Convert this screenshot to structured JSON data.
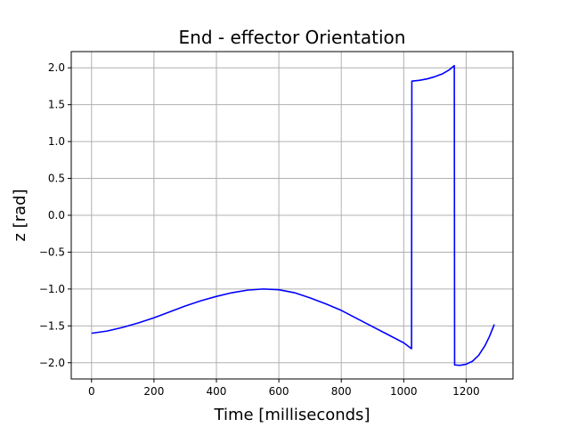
{
  "chart_data": {
    "type": "line",
    "title": "End - effector Orientation",
    "xlabel": "Time [milliseconds]",
    "ylabel": "z [rad]",
    "xlim": [
      -65,
      1350
    ],
    "ylim": [
      -2.22,
      2.22
    ],
    "xticks": [
      0,
      200,
      400,
      600,
      800,
      1000,
      1200
    ],
    "xtick_labels": [
      "0",
      "200",
      "400",
      "600",
      "800",
      "1000",
      "1200"
    ],
    "yticks": [
      2.0,
      1.5,
      1.0,
      0.5,
      0.0,
      -0.5,
      -1.0,
      -1.5,
      -2.0
    ],
    "ytick_labels": [
      "2.0",
      "1.5",
      "1.0",
      "0.5",
      "0.0",
      "−0.5",
      "−1.0",
      "−1.5",
      "−2.0"
    ],
    "grid": true,
    "line_color": "#0000ff",
    "series": [
      {
        "x": [
          0,
          50,
          100,
          150,
          200,
          250,
          300,
          350,
          400,
          450,
          500,
          550,
          600,
          650,
          700,
          750,
          800,
          850,
          900,
          950,
          1000,
          1025,
          1026,
          1050,
          1075,
          1100,
          1125,
          1145,
          1162,
          1163,
          1180,
          1200,
          1220,
          1240,
          1260,
          1275,
          1290
        ],
        "y": [
          -1.6,
          -1.57,
          -1.52,
          -1.46,
          -1.39,
          -1.31,
          -1.23,
          -1.16,
          -1.1,
          -1.05,
          -1.015,
          -1.0,
          -1.01,
          -1.05,
          -1.12,
          -1.2,
          -1.29,
          -1.4,
          -1.51,
          -1.62,
          -1.73,
          -1.81,
          1.82,
          1.83,
          1.85,
          1.88,
          1.92,
          1.97,
          2.03,
          -2.03,
          -2.035,
          -2.02,
          -1.98,
          -1.9,
          -1.77,
          -1.64,
          -1.48
        ]
      }
    ]
  }
}
